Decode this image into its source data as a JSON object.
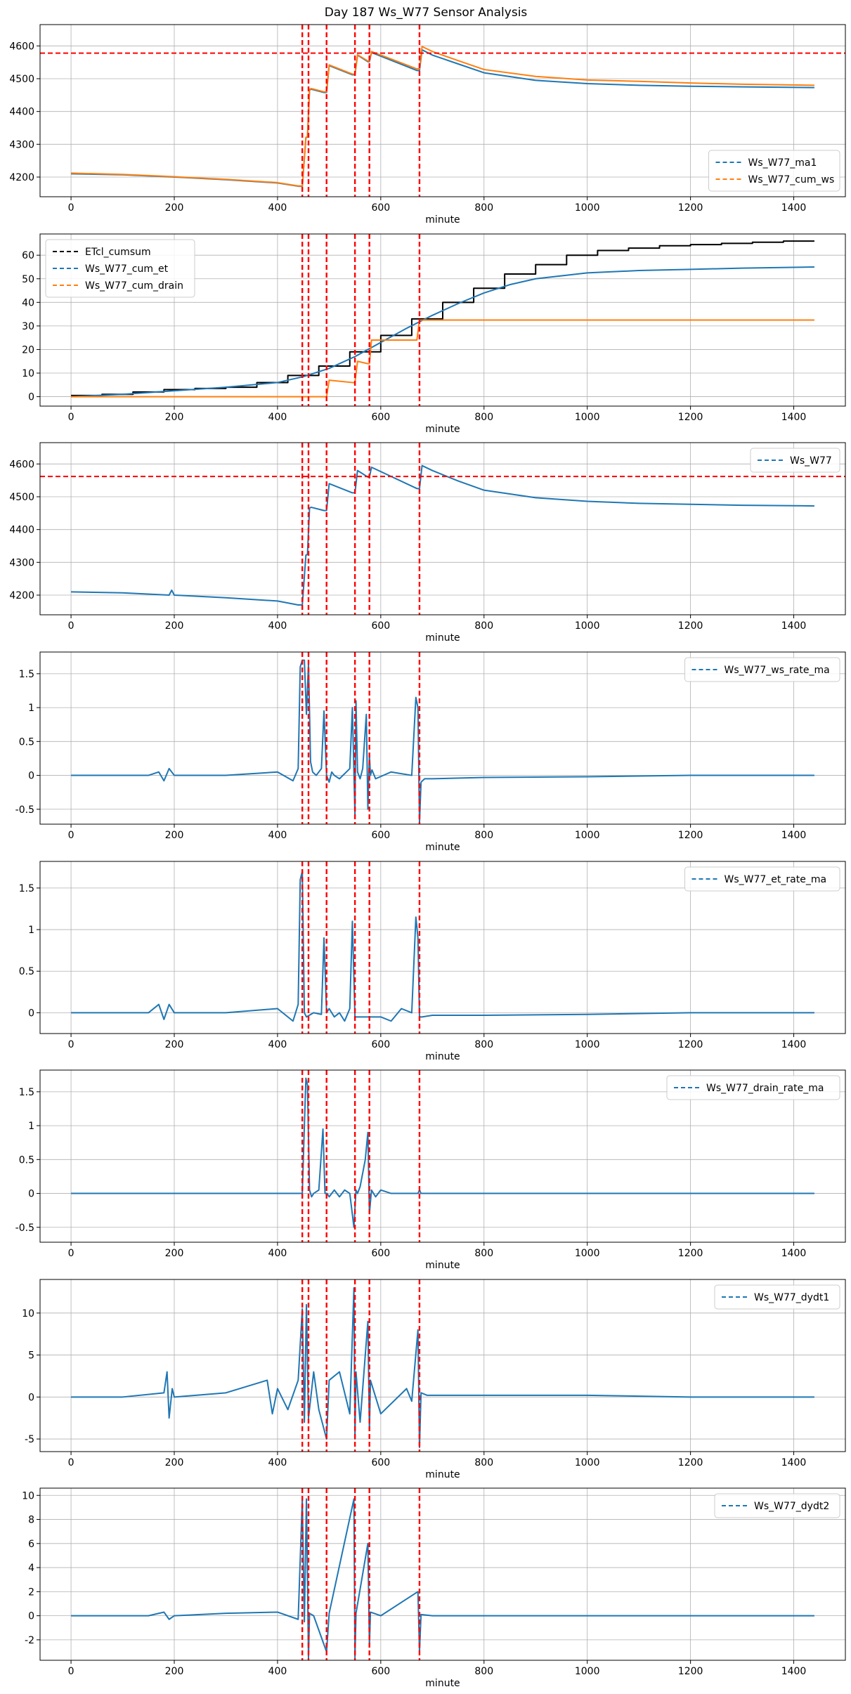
{
  "figure_title": "Day 187 Ws_W77 Sensor Analysis",
  "event_lines_minutes": [
    448,
    460,
    495,
    550,
    578,
    675
  ],
  "event_line_color": "#ff0000",
  "chart_data": [
    {
      "type": "line",
      "title": "",
      "xlabel": "minute",
      "xlim": [
        -60,
        1500
      ],
      "xticks": [
        0,
        200,
        400,
        600,
        800,
        1000,
        1200,
        1400
      ],
      "ylim": [
        4140,
        4665
      ],
      "yticks": [
        4200,
        4300,
        4400,
        4500,
        4600
      ],
      "hline": 4578,
      "legend_position": "lower-right",
      "series": [
        {
          "name": "Ws_W77_ma1",
          "color": "#1f77b4",
          "x": [
            0,
            100,
            200,
            300,
            400,
            440,
            448,
            455,
            458,
            462,
            465,
            490,
            495,
            500,
            545,
            550,
            555,
            575,
            578,
            582,
            670,
            675,
            680,
            700,
            750,
            800,
            900,
            1000,
            1100,
            1200,
            1300,
            1440
          ],
          "y": [
            4210,
            4207,
            4200,
            4192,
            4182,
            4172,
            4172,
            4320,
            4322,
            4465,
            4468,
            4458,
            4458,
            4540,
            4512,
            4512,
            4572,
            4552,
            4552,
            4580,
            4525,
            4525,
            4588,
            4572,
            4545,
            4518,
            4495,
            4485,
            4480,
            4477,
            4475,
            4473
          ]
        },
        {
          "name": "Ws_W77_cum_ws",
          "color": "#ff7f0e",
          "x": [
            0,
            100,
            200,
            300,
            400,
            440,
            448,
            455,
            458,
            462,
            465,
            490,
            495,
            500,
            545,
            550,
            555,
            575,
            578,
            582,
            670,
            675,
            680,
            700,
            750,
            800,
            900,
            1000,
            1100,
            1200,
            1300,
            1440
          ],
          "y": [
            4212,
            4208,
            4201,
            4193,
            4183,
            4173,
            4173,
            4321,
            4323,
            4467,
            4470,
            4460,
            4460,
            4542,
            4514,
            4514,
            4573,
            4554,
            4554,
            4583,
            4530,
            4530,
            4598,
            4583,
            4555,
            4528,
            4507,
            4496,
            4492,
            4487,
            4483,
            4480
          ]
        }
      ]
    },
    {
      "type": "line",
      "title": "",
      "xlabel": "minute",
      "xlim": [
        -60,
        1500
      ],
      "xticks": [
        0,
        200,
        400,
        600,
        800,
        1000,
        1200,
        1400
      ],
      "ylim": [
        -4,
        69
      ],
      "yticks": [
        0,
        10,
        20,
        30,
        40,
        50,
        60
      ],
      "legend_position": "upper-left",
      "series": [
        {
          "name": "ETcl_cumsum",
          "color": "#000000",
          "step": true,
          "x": [
            0,
            60,
            120,
            180,
            240,
            300,
            360,
            420,
            480,
            540,
            600,
            660,
            720,
            780,
            840,
            900,
            960,
            1020,
            1080,
            1140,
            1200,
            1260,
            1320,
            1380,
            1440
          ],
          "y": [
            0.5,
            1,
            2,
            3,
            3.5,
            4,
            6,
            9,
            13,
            19,
            26,
            33,
            40,
            46,
            52,
            56,
            60,
            62,
            63,
            64,
            64.5,
            65,
            65.5,
            66,
            66
          ]
        },
        {
          "name": "Ws_W77_cum_et",
          "color": "#1f77b4",
          "x": [
            0,
            100,
            200,
            300,
            400,
            450,
            500,
            550,
            600,
            650,
            700,
            750,
            800,
            850,
            900,
            1000,
            1100,
            1200,
            1300,
            1440
          ],
          "y": [
            0,
            1,
            2.5,
            4,
            6,
            8.5,
            12,
            17,
            23,
            29,
            34.5,
            39.5,
            44,
            47.5,
            50,
            52.5,
            53.5,
            54,
            54.5,
            55
          ]
        },
        {
          "name": "Ws_W77_cum_drain",
          "color": "#ff7f0e",
          "x": [
            0,
            448,
            455,
            460,
            490,
            495,
            500,
            545,
            550,
            555,
            575,
            578,
            582,
            670,
            675,
            1440
          ],
          "y": [
            0,
            0,
            0,
            0,
            0,
            0,
            7,
            6,
            6,
            15,
            14,
            14,
            24,
            24,
            32.5,
            32.5
          ]
        }
      ]
    },
    {
      "type": "line",
      "title": "",
      "xlabel": "minute",
      "xlim": [
        -60,
        1500
      ],
      "xticks": [
        0,
        200,
        400,
        600,
        800,
        1000,
        1200,
        1400
      ],
      "ylim": [
        4140,
        4665
      ],
      "yticks": [
        4200,
        4300,
        4400,
        4500,
        4600
      ],
      "hline": 4562,
      "legend_position": "upper-right",
      "series": [
        {
          "name": "Ws_W77",
          "color": "#1f77b4",
          "x": [
            0,
            100,
            190,
            195,
            200,
            300,
            400,
            440,
            448,
            455,
            458,
            462,
            465,
            490,
            495,
            500,
            545,
            550,
            555,
            575,
            578,
            582,
            670,
            675,
            680,
            700,
            750,
            800,
            900,
            1000,
            1100,
            1200,
            1300,
            1440
          ],
          "y": [
            4210,
            4207,
            4200,
            4215,
            4200,
            4192,
            4182,
            4170,
            4170,
            4322,
            4324,
            4465,
            4468,
            4458,
            4458,
            4540,
            4512,
            4512,
            4580,
            4560,
            4560,
            4590,
            4525,
            4525,
            4595,
            4580,
            4548,
            4520,
            4497,
            4486,
            4480,
            4477,
            4474,
            4472
          ]
        }
      ]
    },
    {
      "type": "line",
      "title": "",
      "xlabel": "minute",
      "xlim": [
        -60,
        1500
      ],
      "xticks": [
        0,
        200,
        400,
        600,
        800,
        1000,
        1200,
        1400
      ],
      "ylim": [
        -0.72,
        1.82
      ],
      "yticks": [
        -0.5,
        0.0,
        0.5,
        1.0,
        1.5
      ],
      "legend_position": "upper-right",
      "series": [
        {
          "name": "Ws_W77_ws_rate_ma",
          "color": "#1f77b4",
          "x": [
            0,
            150,
            170,
            180,
            190,
            200,
            300,
            400,
            430,
            440,
            444,
            448,
            452,
            456,
            460,
            464,
            468,
            475,
            485,
            490,
            495,
            500,
            505,
            510,
            520,
            540,
            545,
            550,
            552,
            555,
            560,
            565,
            572,
            575,
            578,
            580,
            583,
            590,
            620,
            660,
            668,
            672,
            675,
            678,
            685,
            700,
            800,
            1000,
            1200,
            1440
          ],
          "y": [
            0,
            0,
            0.05,
            -0.08,
            0.1,
            0,
            0,
            0.05,
            -0.08,
            0.1,
            1.6,
            1.7,
            1.7,
            0.9,
            1.65,
            0.2,
            0.05,
            0,
            0.1,
            0.95,
            0,
            -0.1,
            0.05,
            0,
            -0.05,
            0.1,
            1.0,
            -0.6,
            1.1,
            0.05,
            -0.05,
            0.1,
            0.9,
            -0.5,
            0.3,
            0,
            0.08,
            -0.05,
            0.05,
            0,
            1.15,
            1.0,
            -0.7,
            -0.1,
            -0.05,
            -0.05,
            -0.03,
            -0.02,
            0,
            0
          ]
        }
      ]
    },
    {
      "type": "line",
      "title": "",
      "xlabel": "minute",
      "xlim": [
        -60,
        1500
      ],
      "xticks": [
        0,
        200,
        400,
        600,
        800,
        1000,
        1200,
        1400
      ],
      "ylim": [
        -0.25,
        1.82
      ],
      "yticks": [
        0.0,
        0.5,
        1.0,
        1.5
      ],
      "legend_position": "upper-right",
      "series": [
        {
          "name": "Ws_W77_et_rate_ma",
          "color": "#1f77b4",
          "x": [
            0,
            150,
            170,
            180,
            190,
            200,
            300,
            400,
            430,
            440,
            444,
            448,
            452,
            456,
            470,
            485,
            490,
            495,
            500,
            510,
            520,
            530,
            540,
            545,
            550,
            560,
            600,
            620,
            640,
            660,
            668,
            672,
            675,
            680,
            700,
            800,
            1000,
            1200,
            1440
          ],
          "y": [
            0,
            0,
            0.1,
            -0.08,
            0.1,
            0,
            0,
            0.05,
            -0.1,
            0.1,
            1.6,
            1.7,
            0,
            -0.05,
            0,
            -0.02,
            0.9,
            0,
            0.05,
            -0.05,
            0,
            -0.1,
            0.05,
            1.1,
            -0.05,
            -0.05,
            -0.05,
            -0.1,
            0.05,
            0,
            1.15,
            0.9,
            -0.05,
            -0.05,
            -0.03,
            -0.03,
            -0.02,
            0,
            0
          ]
        }
      ]
    },
    {
      "type": "line",
      "title": "",
      "xlabel": "minute",
      "xlim": [
        -60,
        1500
      ],
      "xticks": [
        0,
        200,
        400,
        600,
        800,
        1000,
        1200,
        1400
      ],
      "ylim": [
        -0.72,
        1.82
      ],
      "yticks": [
        -0.5,
        0.0,
        0.5,
        1.0,
        1.5
      ],
      "legend_position": "upper-right",
      "series": [
        {
          "name": "Ws_W77_drain_rate_ma",
          "color": "#1f77b4",
          "x": [
            0,
            440,
            448,
            452,
            455,
            458,
            462,
            466,
            470,
            480,
            488,
            492,
            496,
            500,
            510,
            520,
            530,
            540,
            548,
            552,
            555,
            560,
            570,
            575,
            578,
            582,
            590,
            600,
            620,
            640,
            660,
            672,
            675,
            678,
            690,
            1440
          ],
          "y": [
            0,
            0,
            0,
            1.0,
            1.7,
            1.6,
            0.05,
            -0.05,
            0,
            0.05,
            0.95,
            0,
            0,
            -0.05,
            0.05,
            -0.05,
            0.05,
            0,
            -0.5,
            0.05,
            0,
            0.1,
            0.5,
            0.9,
            -0.3,
            0.05,
            -0.05,
            0.05,
            0,
            0,
            0,
            0,
            0.05,
            0,
            0,
            0
          ]
        }
      ]
    },
    {
      "type": "line",
      "title": "",
      "xlabel": "minute",
      "xlim": [
        -60,
        1500
      ],
      "xticks": [
        0,
        200,
        400,
        600,
        800,
        1000,
        1200,
        1400
      ],
      "ylim": [
        -6.5,
        14
      ],
      "yticks": [
        -5,
        0,
        5,
        10
      ],
      "legend_position": "upper-right",
      "series": [
        {
          "name": "Ws_W77_dydt1",
          "color": "#1f77b4",
          "x": [
            0,
            100,
            180,
            186,
            190,
            196,
            200,
            300,
            380,
            390,
            400,
            420,
            440,
            448,
            452,
            456,
            460,
            470,
            480,
            495,
            500,
            520,
            540,
            548,
            550,
            552,
            560,
            575,
            578,
            580,
            600,
            650,
            660,
            672,
            675,
            678,
            690,
            800,
            1000,
            1200,
            1440
          ],
          "y": [
            0,
            0,
            0.5,
            3,
            -2.5,
            1,
            0,
            0.5,
            2,
            -2,
            1,
            -1.5,
            2,
            10.5,
            -3,
            11,
            -2.5,
            3,
            -1.5,
            -5,
            2,
            3,
            -2,
            13,
            -5,
            3,
            -3,
            9,
            -4,
            2,
            -2,
            1,
            -0.5,
            8,
            -6,
            0.5,
            0.2,
            0.2,
            0.2,
            0,
            0
          ]
        }
      ]
    },
    {
      "type": "line",
      "title": "",
      "xlabel": "minute",
      "xlim": [
        -60,
        1500
      ],
      "xticks": [
        0,
        200,
        400,
        600,
        800,
        1000,
        1200,
        1400
      ],
      "ylim": [
        -3.7,
        10.6
      ],
      "yticks": [
        -2,
        0,
        2,
        4,
        6,
        8,
        10
      ],
      "legend_position": "upper-right",
      "series": [
        {
          "name": "Ws_W77_dydt2",
          "color": "#1f77b4",
          "x": [
            0,
            150,
            180,
            190,
            200,
            300,
            400,
            440,
            448,
            452,
            456,
            460,
            462,
            470,
            495,
            500,
            548,
            550,
            552,
            575,
            578,
            580,
            600,
            672,
            675,
            678,
            700,
            1000,
            1440
          ],
          "y": [
            0,
            0,
            0.3,
            -0.3,
            0,
            0.2,
            0.3,
            -0.3,
            9.7,
            -0.5,
            9.7,
            -3.5,
            0.2,
            0,
            -3,
            0.2,
            9.7,
            -3.5,
            0.2,
            6,
            -2.5,
            0.3,
            0,
            2,
            -3,
            0.1,
            0,
            0,
            0
          ]
        }
      ]
    }
  ]
}
